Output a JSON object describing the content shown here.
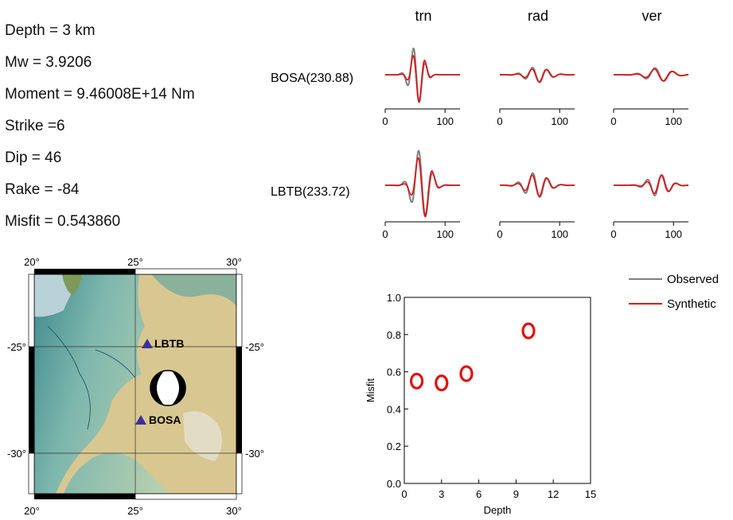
{
  "parameters": [
    {
      "label": "Depth = 3 km"
    },
    {
      "label": "Mw = 3.9206"
    },
    {
      "label": "Moment = 9.46008E+14 Nm"
    },
    {
      "label": "Strike =6"
    },
    {
      "label": "Dip = 46"
    },
    {
      "label": "Rake = -84"
    },
    {
      "label": "Misfit = 0.543860"
    }
  ],
  "components": [
    "trn",
    "rad",
    "ver"
  ],
  "stations": [
    {
      "label": "BOSA(230.88)"
    },
    {
      "label": "LBTB(233.72)"
    }
  ],
  "waveform_axis": {
    "ticks": [
      0,
      100
    ],
    "max": 125
  },
  "legend": [
    {
      "label": "Observed",
      "color": "#808080"
    },
    {
      "label": "Synthetic",
      "color": "#e01010"
    }
  ],
  "map": {
    "top_ticks": [
      "20°",
      "25°",
      "30°"
    ],
    "bottom_ticks": [
      "20°",
      "25°",
      "30°"
    ],
    "left_ticks": [
      "-25°",
      "-30°"
    ],
    "right_ticks": [
      "-25°",
      "-30°"
    ],
    "stations": [
      {
        "name": "LBTB",
        "lon": 25.6,
        "lat": -25.0
      },
      {
        "name": "BOSA",
        "lon": 25.3,
        "lat": -28.6
      }
    ],
    "event": {
      "lon": 26.5,
      "lat": -27.0
    },
    "extent": {
      "lon": [
        20,
        30
      ],
      "lat": [
        -31.3,
        -21.8
      ]
    },
    "colors": {
      "water": "#b8d2d8",
      "lowland": "#5a9c9a",
      "highland": "#d8c790",
      "station": "#3b2f9a"
    }
  },
  "chart_data": {
    "type": "scatter",
    "title": "",
    "xlabel": "Depth",
    "ylabel": "Misfit",
    "xlim": [
      0,
      15
    ],
    "ylim": [
      0.0,
      1.0
    ],
    "xticks": [
      0,
      3,
      6,
      9,
      12,
      15
    ],
    "yticks": [
      "0.0",
      "0.2",
      "0.4",
      "0.6",
      "0.8",
      "1.0"
    ],
    "marker_color": "#e01010",
    "points": [
      {
        "x": 1,
        "y": 0.55
      },
      {
        "x": 3,
        "y": 0.54
      },
      {
        "x": 5,
        "y": 0.59
      },
      {
        "x": 10,
        "y": 0.82
      }
    ]
  }
}
